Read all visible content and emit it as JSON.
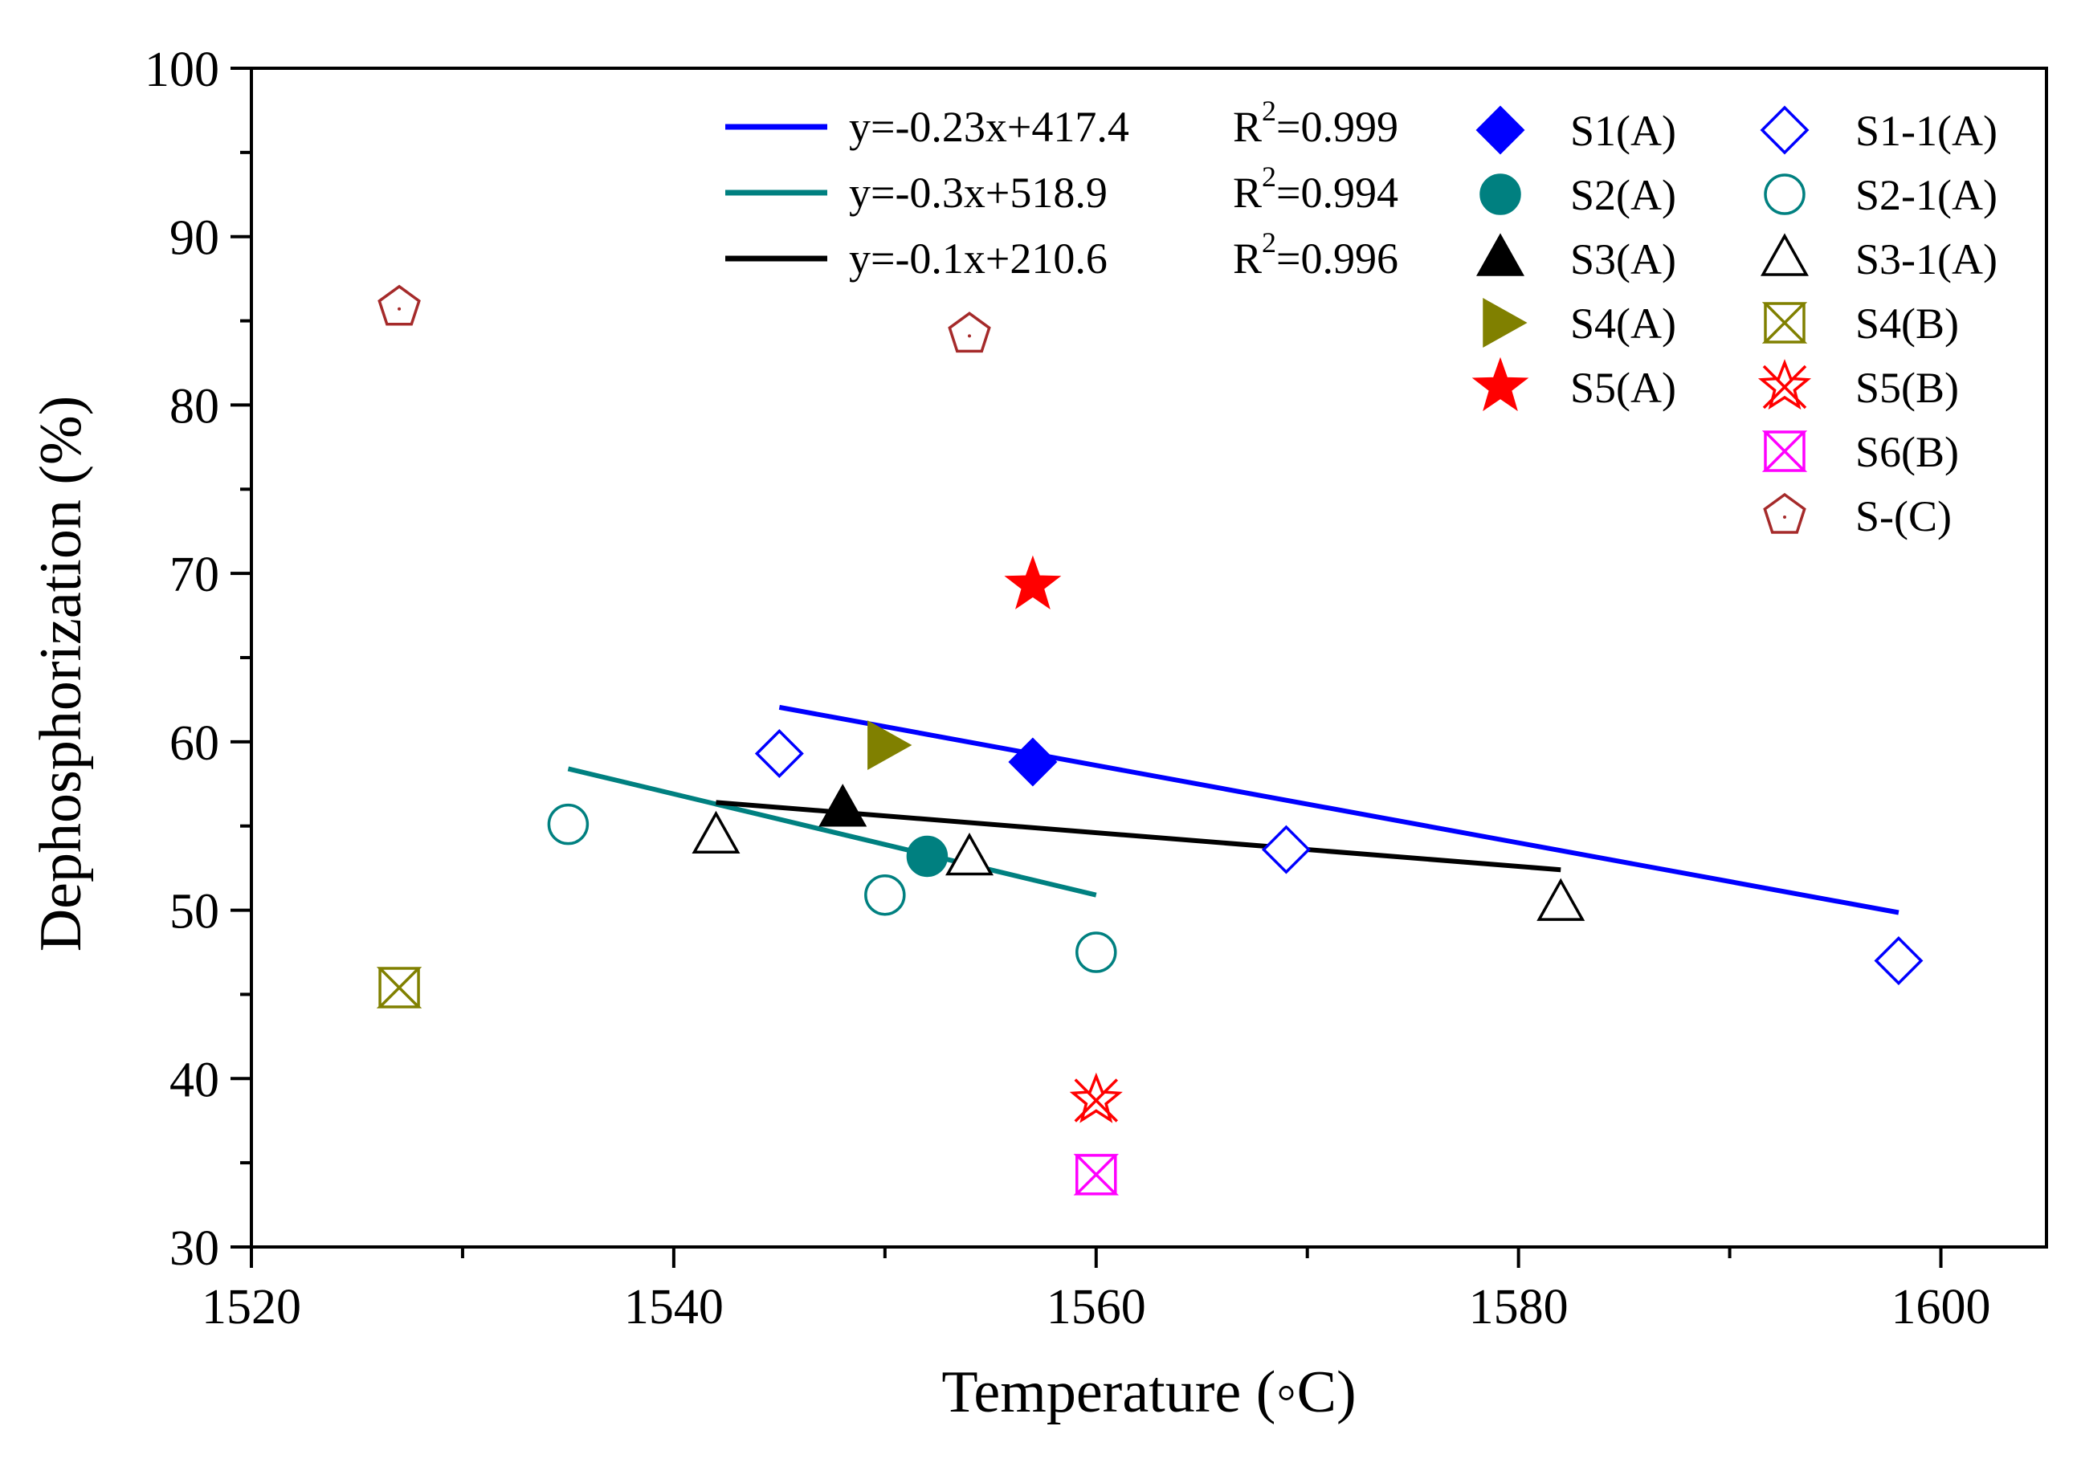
{
  "chart_data": {
    "type": "scatter",
    "title": "",
    "xlabel": "Temperature (◦C)",
    "ylabel": "Dephosphorization (%)",
    "xlim": [
      1520,
      1605
    ],
    "ylim": [
      30,
      100
    ],
    "xticks": [
      1520,
      1540,
      1560,
      1580,
      1600
    ],
    "xtick_labels": [
      "1520",
      "1540",
      "1560",
      "1580",
      "1600"
    ],
    "yticks": [
      30,
      40,
      50,
      60,
      70,
      80,
      90,
      100
    ],
    "ytick_labels": [
      "30",
      "40",
      "50",
      "60",
      "70",
      "80",
      "90",
      "100"
    ],
    "grid": false,
    "legend_position": "top-right",
    "fit_lines": [
      {
        "name": "S1-1(A) fit",
        "equation": "y=-0.23x+417.4",
        "r2_prefix": "R",
        "r2_value": "=0.999",
        "color": "#0000ff",
        "x_range": [
          1545,
          1598
        ]
      },
      {
        "name": "S2-1(A) fit",
        "equation": "y=-0.3x+518.9",
        "r2_prefix": "R",
        "r2_value": "=0.994",
        "color": "#008080",
        "x_range": [
          1535,
          1560
        ]
      },
      {
        "name": "S3-1(A) fit",
        "equation": "y=-0.1x+210.6",
        "r2_prefix": "R",
        "r2_value": "=0.996",
        "color": "#000000",
        "x_range": [
          1542,
          1582
        ]
      }
    ],
    "series": [
      {
        "name": "S1(A)",
        "marker": "diamond",
        "filled": true,
        "color": "#0000ff",
        "points": [
          [
            1557,
            58.8
          ]
        ]
      },
      {
        "name": "S2(A)",
        "marker": "circle",
        "filled": true,
        "color": "#008080",
        "points": [
          [
            1552,
            53.2
          ]
        ]
      },
      {
        "name": "S3(A)",
        "marker": "triangle",
        "filled": true,
        "color": "#000000",
        "points": [
          [
            1548,
            56.0
          ]
        ]
      },
      {
        "name": "S4(A)",
        "marker": "triangle-right",
        "filled": true,
        "color": "#808000",
        "points": [
          [
            1550,
            59.8
          ]
        ]
      },
      {
        "name": "S5(A)",
        "marker": "star",
        "filled": true,
        "color": "#ff0000",
        "points": [
          [
            1557,
            69.3
          ]
        ]
      },
      {
        "name": "S1-1(A)",
        "marker": "diamond",
        "filled": false,
        "color": "#0000ff",
        "points": [
          [
            1545,
            59.3
          ],
          [
            1569,
            53.6
          ],
          [
            1598,
            47.0
          ]
        ]
      },
      {
        "name": "S2-1(A)",
        "marker": "circle",
        "filled": false,
        "color": "#008080",
        "points": [
          [
            1535,
            55.1
          ],
          [
            1550,
            50.9
          ],
          [
            1560,
            47.5
          ]
        ]
      },
      {
        "name": "S3-1(A)",
        "marker": "triangle",
        "filled": false,
        "color": "#000000",
        "points": [
          [
            1542,
            54.4
          ],
          [
            1554,
            53.1
          ],
          [
            1582,
            50.4
          ]
        ]
      },
      {
        "name": "S4(B)",
        "marker": "x-box",
        "filled": false,
        "color": "#808000",
        "points": [
          [
            1527,
            45.4
          ]
        ]
      },
      {
        "name": "S5(B)",
        "marker": "star-x",
        "filled": false,
        "color": "#ff0000",
        "points": [
          [
            1560,
            38.7
          ]
        ]
      },
      {
        "name": "S6(B)",
        "marker": "x-box",
        "filled": false,
        "color": "#ff00ff",
        "points": [
          [
            1560,
            34.3
          ]
        ]
      },
      {
        "name": "S-(C)",
        "marker": "pentagon",
        "filled": false,
        "color": "#a52a2a",
        "points": [
          [
            1527,
            85.8
          ],
          [
            1554,
            84.2
          ]
        ]
      }
    ],
    "legend_symbol_order": [
      "S1(A)",
      "S2(A)",
      "S3(A)",
      "S4(A)",
      "S5(A)",
      "S1-1(A)",
      "S2-1(A)",
      "S3-1(A)",
      "S4(B)",
      "S5(B)",
      "S6(B)",
      "S-(C)"
    ]
  }
}
